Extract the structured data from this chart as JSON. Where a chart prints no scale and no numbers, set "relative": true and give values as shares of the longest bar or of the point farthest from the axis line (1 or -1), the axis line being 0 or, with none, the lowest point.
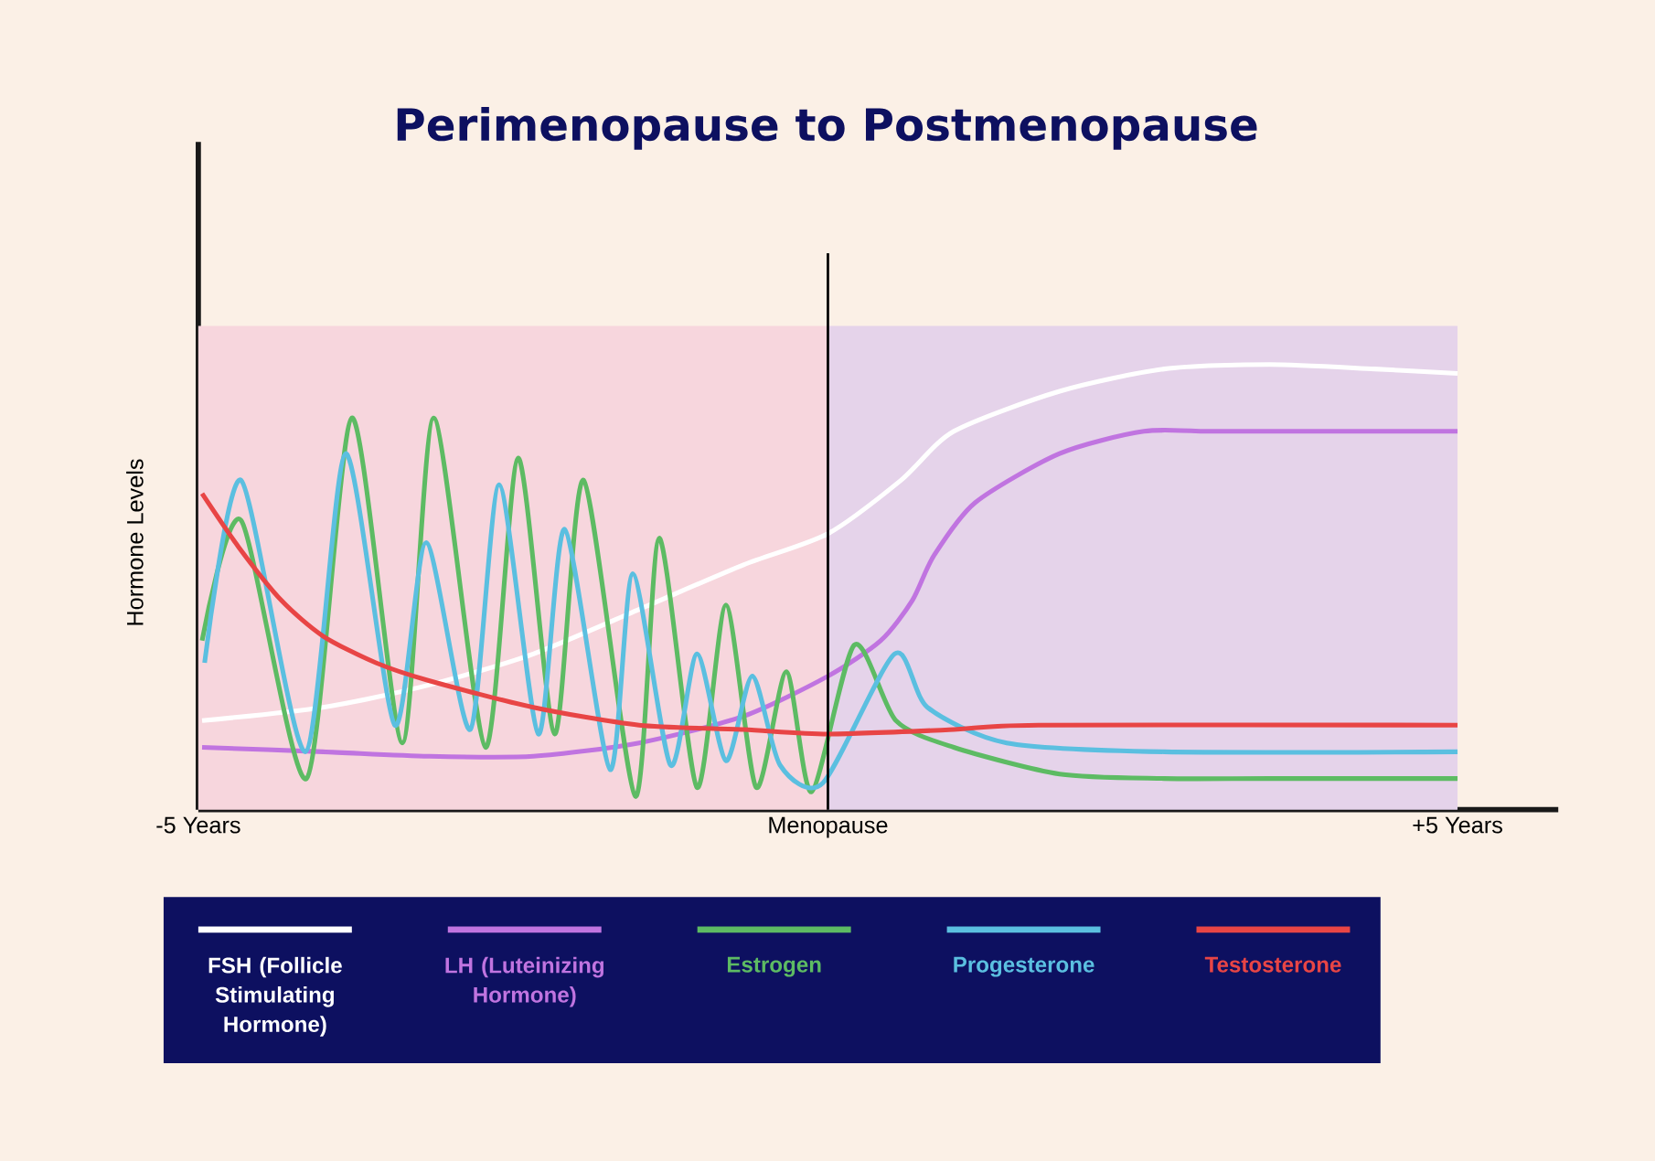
{
  "chart_data": {
    "type": "line",
    "title": "Perimenopause to Postmenopause",
    "ylabel": "Hormone Levels",
    "relative": true,
    "xlim": [
      -5,
      5.8
    ],
    "xticks": [
      {
        "value": -5,
        "label": "-5 Years"
      },
      {
        "value": 0,
        "label": "Menopause"
      },
      {
        "value": 5,
        "label": "+5 Years"
      }
    ],
    "legend": "bottom",
    "bands": [
      {
        "axis": "x",
        "from": -5,
        "to": 0,
        "color": "#f7d6dd"
      },
      {
        "axis": "x",
        "from": 0,
        "to": 5,
        "color": "#e5d3ea"
      }
    ],
    "ref_lines": [
      {
        "axis": "x",
        "value": 0,
        "color": "#000000"
      }
    ],
    "series": [
      {
        "name": "FSH (Follicle Stimulating Hormone)",
        "color": "#ffffff",
        "x": [
          -4.97,
          -4.01,
          -3.17,
          -2.34,
          -1.5,
          -0.67,
          0,
          0.58,
          1.0,
          1.84,
          2.67,
          3.51,
          4.34,
          5.0
        ],
        "values": [
          0.2,
          0.23,
          0.28,
          0.35,
          0.45,
          0.55,
          0.62,
          0.74,
          0.85,
          0.94,
          0.99,
          1.0,
          0.99,
          0.98
        ]
      },
      {
        "name": "LH (Luteinizing Hormone)",
        "color": "#c074e0",
        "x": [
          -4.97,
          -4.01,
          -3.17,
          -2.34,
          -1.5,
          -0.67,
          0,
          0.42,
          0.67,
          0.84,
          1.17,
          1.84,
          2.51,
          3.09,
          5.0
        ],
        "values": [
          0.14,
          0.13,
          0.12,
          0.12,
          0.15,
          0.21,
          0.3,
          0.38,
          0.47,
          0.57,
          0.69,
          0.8,
          0.85,
          0.85,
          0.85
        ]
      },
      {
        "name": "Estrogen",
        "color": "#5dbb63",
        "x": [
          -4.97,
          -4.66,
          -4.14,
          -3.78,
          -3.38,
          -3.13,
          -2.72,
          -2.46,
          -2.17,
          -1.94,
          -1.53,
          -1.34,
          -1.04,
          -0.81,
          -0.57,
          -0.33,
          -0.13,
          0.21,
          0.54,
          1.0,
          1.84,
          2.67,
          3.51,
          5.0
        ],
        "values": [
          0.38,
          0.65,
          0.07,
          0.88,
          0.15,
          0.88,
          0.14,
          0.79,
          0.17,
          0.74,
          0.03,
          0.61,
          0.05,
          0.46,
          0.05,
          0.31,
          0.04,
          0.37,
          0.2,
          0.14,
          0.08,
          0.07,
          0.07,
          0.07
        ]
      },
      {
        "name": "Progesterone",
        "color": "#5bbfe0",
        "x": [
          -4.95,
          -4.66,
          -4.15,
          -3.83,
          -3.44,
          -3.19,
          -2.84,
          -2.61,
          -2.3,
          -2.09,
          -1.73,
          -1.55,
          -1.25,
          -1.04,
          -0.81,
          -0.6,
          -0.38,
          -0.04,
          0.53,
          0.79,
          1.42,
          2.67,
          5.0
        ],
        "values": [
          0.33,
          0.74,
          0.13,
          0.8,
          0.19,
          0.6,
          0.18,
          0.73,
          0.17,
          0.63,
          0.09,
          0.53,
          0.1,
          0.35,
          0.11,
          0.3,
          0.1,
          0.06,
          0.35,
          0.23,
          0.15,
          0.13,
          0.13
        ]
      },
      {
        "name": "Testosterone",
        "color": "#e84545",
        "x": [
          -4.97,
          -4.68,
          -4.34,
          -4.01,
          -3.59,
          -3.17,
          -2.34,
          -1.5,
          -0.67,
          0,
          1.0,
          1.67,
          5.0
        ],
        "values": [
          0.71,
          0.59,
          0.47,
          0.39,
          0.33,
          0.29,
          0.23,
          0.19,
          0.18,
          0.17,
          0.18,
          0.19,
          0.19
        ]
      }
    ]
  }
}
